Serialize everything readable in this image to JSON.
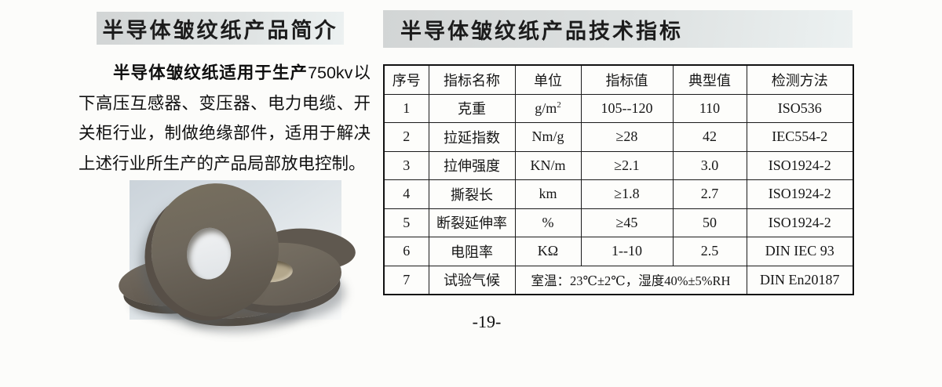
{
  "left": {
    "title": "半导体皱纹纸产品简介",
    "paragraph": {
      "lead": "半导体皱纹纸适用于生产",
      "rest": "750kv以下高压互感器、变压器、电力电缆、开关柜行业，制做绝缘部件，适用于解决上述行业所生产的产品局部放电控制。"
    }
  },
  "right": {
    "title": "半导体皱纹纸产品技术指标",
    "table": {
      "headers": [
        "序号",
        "指标名称",
        "单位",
        "指标值",
        "典型值",
        "检测方法"
      ],
      "rows": [
        {
          "cells": [
            "1",
            "克重",
            "g/m²",
            "105--120",
            "110",
            "ISO536"
          ]
        },
        {
          "cells": [
            "2",
            "拉延指数",
            "Nm/g",
            "≥28",
            "42",
            "IEC554-2"
          ]
        },
        {
          "cells": [
            "3",
            "拉伸强度",
            "KN/m",
            "≥2.1",
            "3.0",
            "ISO1924-2"
          ]
        },
        {
          "cells": [
            "4",
            "撕裂长",
            "km",
            "≥1.8",
            "2.7",
            "ISO1924-2"
          ]
        },
        {
          "cells": [
            "5",
            "断裂延伸率",
            "%",
            "≥45",
            "50",
            "ISO1924-2"
          ]
        },
        {
          "cells": [
            "6",
            "电阻率",
            "KΩ",
            "1--10",
            "2.5",
            "DIN IEC 93"
          ]
        },
        {
          "cells": [
            "7",
            "试验气候",
            "室温：23℃±2℃，湿度40%±5%RH",
            "DIN En20187"
          ],
          "spans": [
            1,
            1,
            3,
            1
          ]
        }
      ]
    }
  },
  "page": {
    "number": "-19-"
  },
  "colors": {
    "title_bar_start": "#d2d5d5",
    "title_bar_end": "#ecf1f1",
    "table_border": "#1a1a1a",
    "photo_background": "#cbd3da",
    "roll_surface": "#6e675c",
    "roll_core": "#b3a78c"
  }
}
